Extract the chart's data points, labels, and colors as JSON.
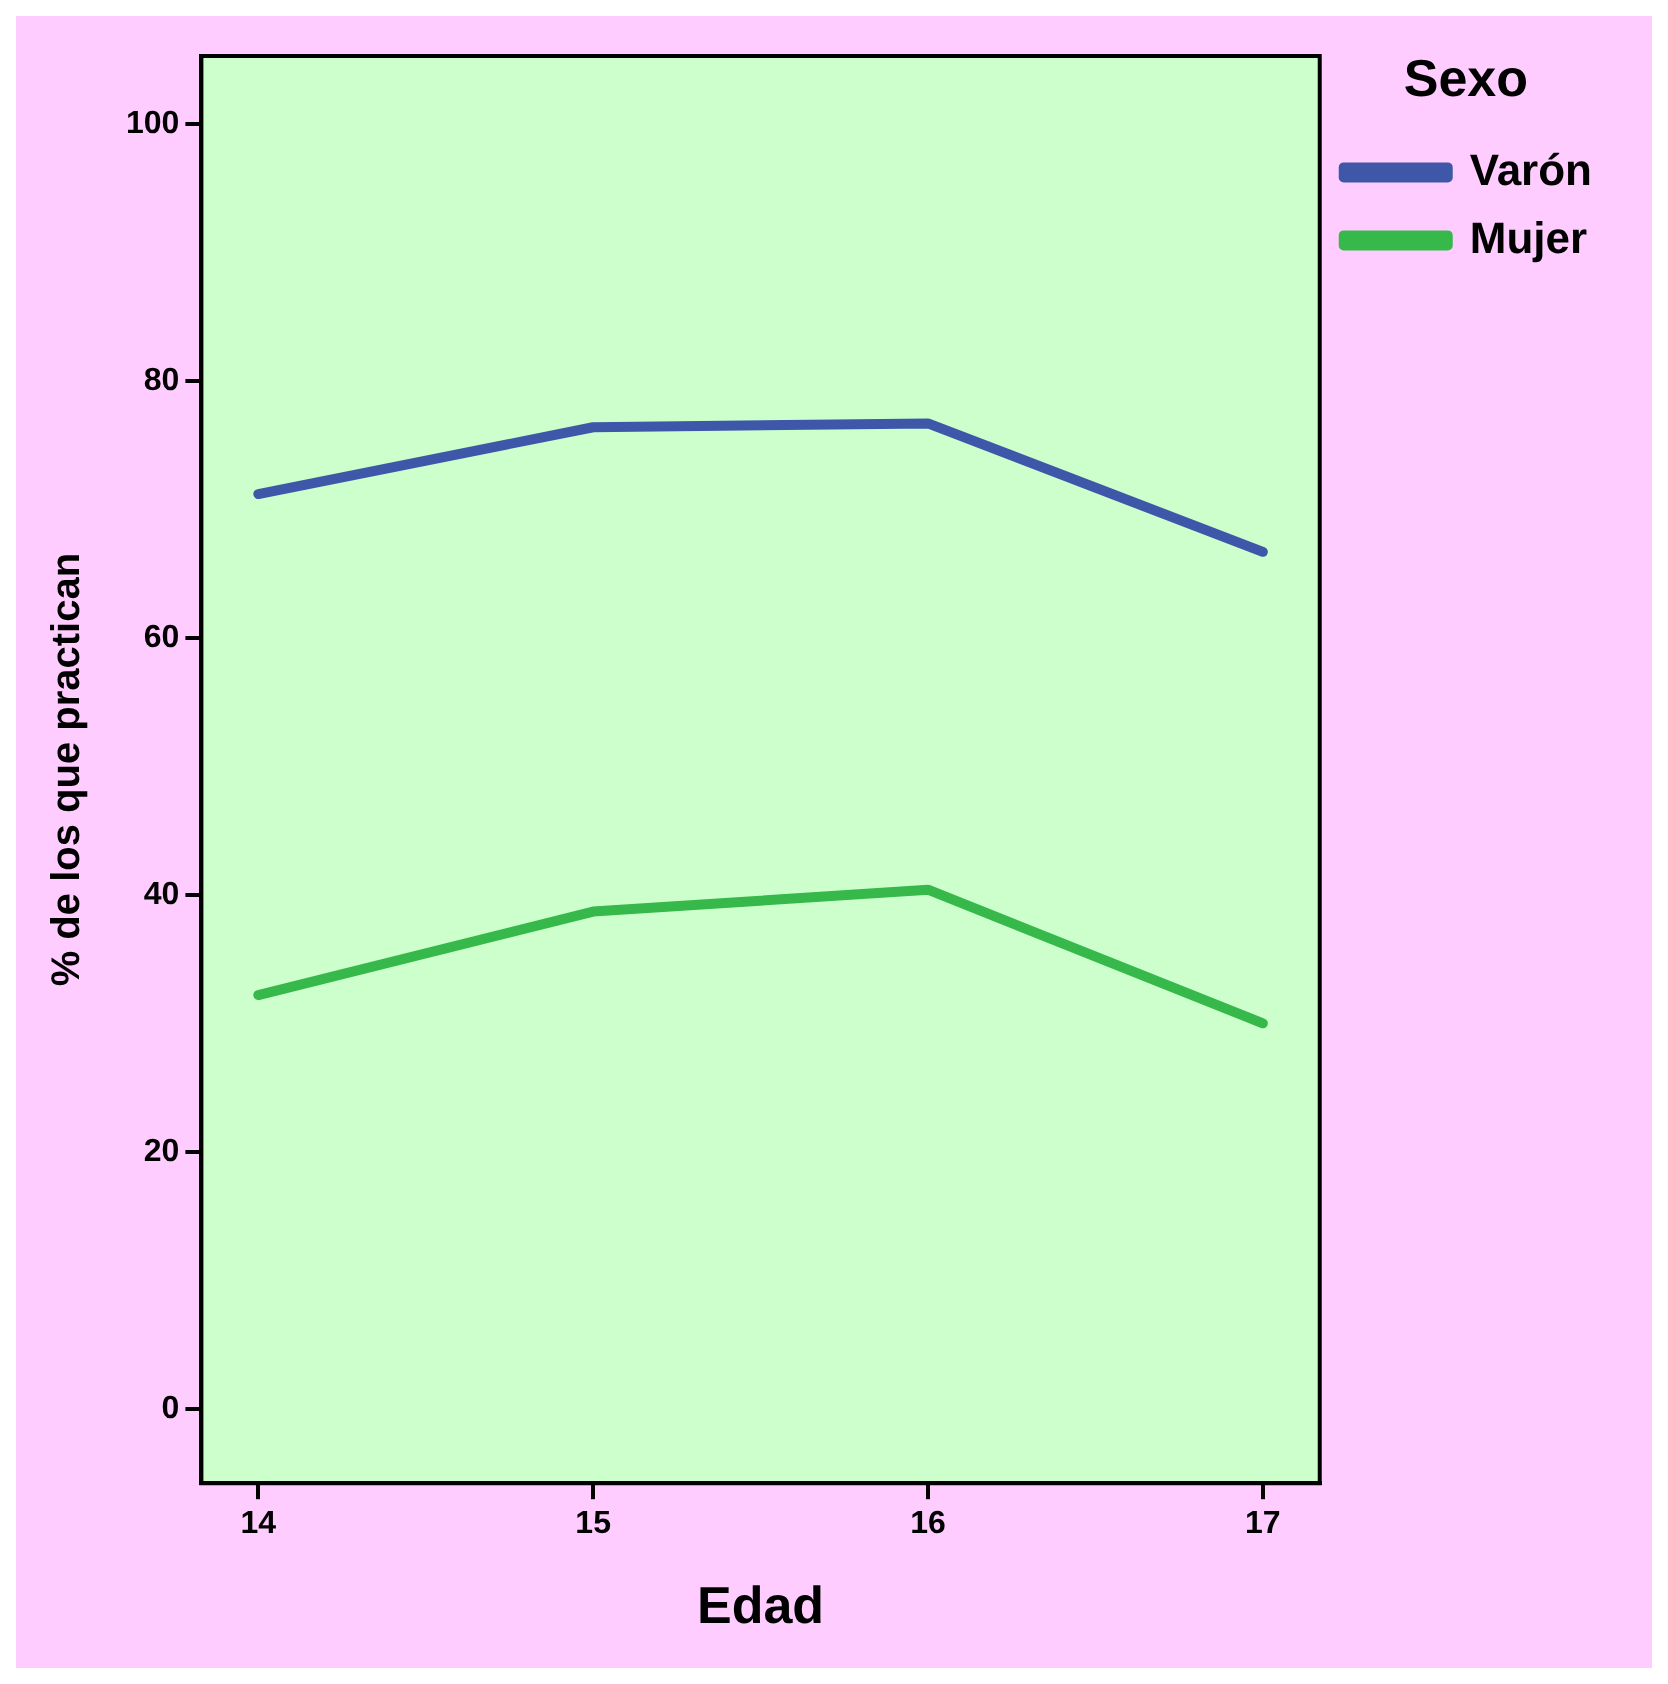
{
  "chart_data": {
    "type": "line",
    "xlabel": "Edad",
    "ylabel": "% de los que practican",
    "legend_title": "Sexo",
    "x": [
      14,
      15,
      16,
      17
    ],
    "xlim": [
      13.83,
      17.17
    ],
    "xticks": [
      14,
      15,
      16,
      17
    ],
    "ylim": [
      -5.8,
      105.3
    ],
    "yticks": [
      0,
      20,
      40,
      60,
      80,
      100
    ],
    "grid": false,
    "legend": "top right",
    "marker": "none",
    "line_style": "solid",
    "series": [
      {
        "name": "Varón",
        "color": "#3f57a8",
        "values": [
          71.2,
          76.4,
          76.7,
          66.7
        ]
      },
      {
        "name": "Mujer",
        "color": "#36b84a",
        "values": [
          32.2,
          38.7,
          40.4,
          30.0
        ]
      }
    ]
  }
}
